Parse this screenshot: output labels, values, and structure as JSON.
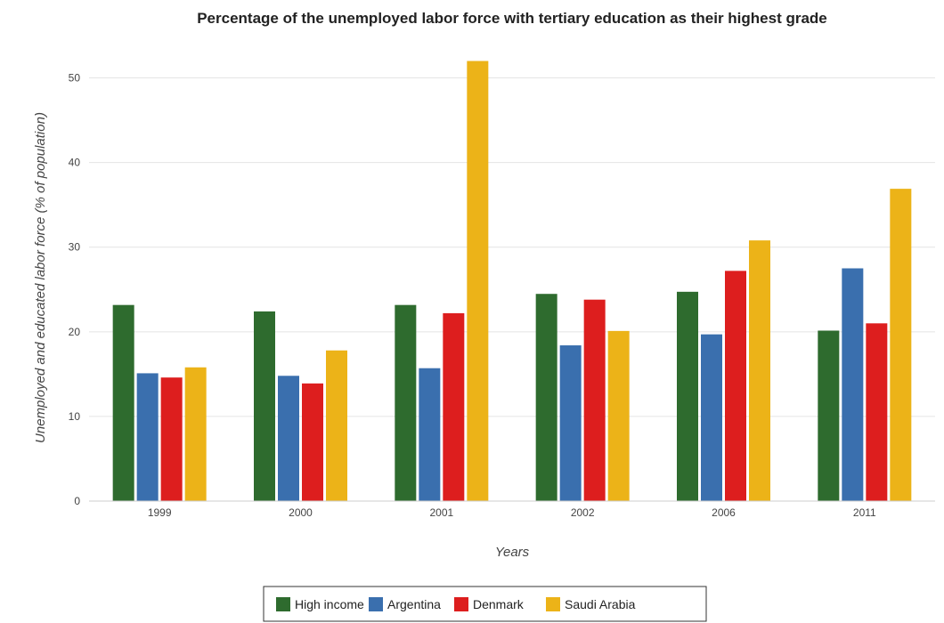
{
  "chart_data": {
    "type": "bar",
    "title": "Percentage of the unemployed labor force with tertiary education as their highest grade",
    "xlabel": "Years",
    "ylabel": "Unemployed and educated labor force (% of population)",
    "categories": [
      "1999",
      "2000",
      "2001",
      "2002",
      "2006",
      "2011"
    ],
    "ylim": [
      0,
      55
    ],
    "yticks": [
      0,
      10,
      20,
      30,
      40,
      50
    ],
    "grid": true,
    "legend_position": "bottom-center",
    "series": [
      {
        "name": "High income",
        "color": "#2e6b2e",
        "values": [
          23.17,
          22.41,
          23.17,
          24.48,
          24.73,
          20.14
        ]
      },
      {
        "name": "Argentina",
        "color": "#3a6fae",
        "values": [
          15.1,
          14.8,
          15.7,
          18.4,
          19.7,
          27.5
        ]
      },
      {
        "name": "Denmark",
        "color": "#dd1e1e",
        "values": [
          14.6,
          13.9,
          22.2,
          23.8,
          27.2,
          21.0
        ]
      },
      {
        "name": "Saudi Arabia",
        "color": "#ecb318",
        "values": [
          15.8,
          17.8,
          52.0,
          20.1,
          30.8,
          36.9
        ]
      }
    ]
  }
}
